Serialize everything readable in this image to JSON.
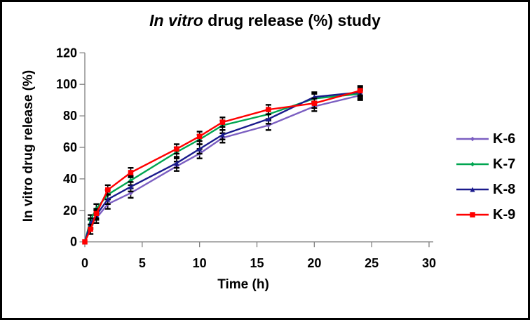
{
  "window": {
    "background": "#ffffff",
    "border_color": "#000000"
  },
  "chart_data": {
    "type": "line",
    "title": {
      "italic": "In vitro",
      "rest": "drug release (%) study"
    },
    "title_full": "In vitro drug release (%) study",
    "xlabel": "Time (h)",
    "ylabel": "In vitro drug release (%)",
    "x": [
      0,
      0.5,
      1,
      2,
      4,
      8,
      10,
      12,
      16,
      20,
      24
    ],
    "xlim": [
      0,
      30
    ],
    "ylim": [
      0,
      120
    ],
    "xticks": [
      0,
      5,
      10,
      15,
      20,
      25,
      30
    ],
    "yticks": [
      0,
      20,
      40,
      60,
      80,
      100,
      120
    ],
    "grid": false,
    "legend_position": "right",
    "axis_color": "#808080",
    "tick_label_color": "#000000",
    "error_bar_plus_minus": 3,
    "error_bar_color": "#000000",
    "series": [
      {
        "name": "K-6",
        "color": "#7B5EC1",
        "marker": "diamond",
        "values": [
          0,
          11,
          15,
          24,
          31,
          48,
          56,
          66,
          74,
          86,
          93
        ]
      },
      {
        "name": "K-7",
        "color": "#00A550",
        "marker": "diamond",
        "values": [
          0,
          14,
          21,
          30,
          39,
          57,
          65,
          74,
          81,
          91,
          94
        ]
      },
      {
        "name": "K-8",
        "color": "#1A1A8C",
        "marker": "triangle",
        "values": [
          0,
          12,
          17,
          27,
          35,
          50,
          59,
          68,
          78,
          92,
          95
        ]
      },
      {
        "name": "K-9",
        "color": "#FF0000",
        "marker": "square",
        "values": [
          0,
          8,
          18,
          33,
          44,
          59,
          67,
          76,
          84,
          88,
          96
        ]
      }
    ]
  }
}
